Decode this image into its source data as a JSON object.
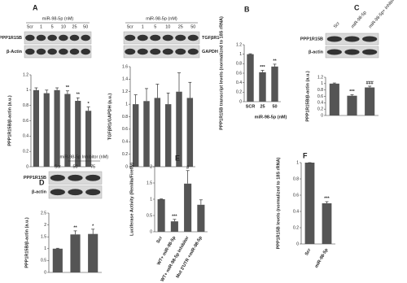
{
  "chart_data": [
    {
      "type": "bar",
      "panel": "A",
      "blot": {
        "header": "miR-98-5p (nM)",
        "rows": [
          "PPP1R15B",
          "β-Actin"
        ]
      },
      "y_label": "PPP1R15B/β-actin (a.u.)",
      "categories": [
        "Scr",
        "1",
        "5",
        "10",
        "25",
        "50"
      ],
      "values": [
        1.0,
        0.96,
        1.0,
        0.95,
        0.86,
        0.73
      ],
      "errors": [
        0.03,
        0.04,
        0.03,
        0.04,
        0.04,
        0.05
      ],
      "significance": [
        null,
        null,
        null,
        "**",
        "**",
        "*"
      ],
      "ylim": [
        0,
        1.2
      ],
      "yticks": [
        0,
        0.2,
        0.4,
        0.6,
        0.8,
        1,
        1.2
      ],
      "color": "#555555"
    },
    {
      "type": "bar",
      "blot": {
        "header": "miR-98-5p (nM)",
        "rows": [
          "TGFβR1",
          "GAPDH"
        ]
      },
      "y_label": "TGFβR1/GAPDH (a.u.)",
      "categories": [
        "Scr",
        "1",
        "5",
        "10",
        "25",
        "50"
      ],
      "values": [
        1.0,
        1.05,
        1.1,
        1.0,
        1.2,
        1.1
      ],
      "errors": [
        0.15,
        0.2,
        0.22,
        0.18,
        0.3,
        0.25
      ],
      "ylim": [
        0,
        1.6
      ],
      "yticks": [
        0,
        0.2,
        0.4,
        0.6,
        0.8,
        1,
        1.2,
        1.4,
        1.6
      ],
      "color": "#555555"
    },
    {
      "type": "bar",
      "panel": "B",
      "y_label": "PPP1R15B transcript levels (normalized to 18S rRNA)",
      "x_label": "miR-98-5p (nM)",
      "categories": [
        "SCR",
        "25",
        "50"
      ],
      "values": [
        1.0,
        0.62,
        0.74
      ],
      "errors": [
        0.01,
        0.04,
        0.05
      ],
      "significance": [
        null,
        "***",
        "**"
      ],
      "ylim": [
        0,
        1.2
      ],
      "yticks": [
        0,
        0.2,
        0.4,
        0.6,
        0.8,
        1,
        1.2
      ],
      "color": "#555555"
    },
    {
      "type": "bar",
      "panel": "C",
      "blot": {
        "rows": [
          "PPP1R15B",
          "β-actin"
        ]
      },
      "y_label": "PPP1R15B/β-actin (a.u.)",
      "categories": [
        "Scr",
        "miR-98-5p",
        "miR-98-5p+ inhibitor"
      ],
      "values": [
        1.0,
        0.62,
        0.88
      ],
      "errors": [
        0.02,
        0.03,
        0.04
      ],
      "significance": [
        null,
        "***",
        "###"
      ],
      "ylim": [
        0,
        1.2
      ],
      "yticks": [
        0,
        0.2,
        0.4,
        0.6,
        0.8,
        1,
        1.2
      ],
      "color": "#555555"
    },
    {
      "type": "bar",
      "panel": "D",
      "blot": {
        "header": "miR-98-5p Inhibitor (nM)",
        "rows": [
          "PPP1R15B",
          "β-actin"
        ]
      },
      "y_label": "PPP1R15B/β-actin (a.u.)",
      "categories": [
        "Scr",
        "50",
        "75"
      ],
      "values": [
        1.0,
        1.6,
        1.62
      ],
      "errors": [
        0.02,
        0.15,
        0.2
      ],
      "significance": [
        null,
        "**",
        "*"
      ],
      "ylim": [
        0,
        2.5
      ],
      "yticks": [
        0,
        0.5,
        1,
        1.5,
        2,
        2.5
      ],
      "color": "#555555"
    },
    {
      "type": "bar",
      "panel": "E",
      "y_label": "Luciferase Activity (Renilla/Firefly)",
      "categories": [
        "Scr",
        "WT+ miR-98-5p",
        "WT+ miR-98-5p inhibitor",
        "Mut 3'UTR +miR-98-5p"
      ],
      "values": [
        1.0,
        0.32,
        1.48,
        0.83
      ],
      "errors": [
        0.01,
        0.06,
        0.4,
        0.15
      ],
      "significance": [
        null,
        "***",
        "#",
        null
      ],
      "ylim": [
        0,
        2
      ],
      "yticks": [
        0,
        0.5,
        1,
        1.5,
        2
      ],
      "color": "#555555"
    },
    {
      "type": "bar",
      "panel": "F",
      "y_label": "PPP1R15B levels (normalized to 18S rRNA)",
      "categories": [
        "Scr",
        "miR-98-5p"
      ],
      "values": [
        1.0,
        0.5
      ],
      "errors": [
        0.0,
        0.02
      ],
      "significance": [
        null,
        "***"
      ],
      "ylim": [
        0,
        1
      ],
      "yticks": [
        0,
        0.2,
        0.4,
        0.6,
        0.8,
        1
      ],
      "color": "#555555"
    }
  ]
}
